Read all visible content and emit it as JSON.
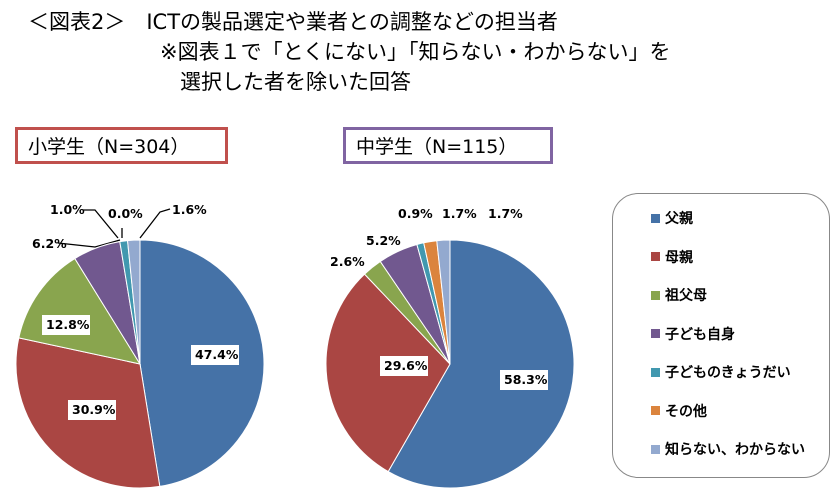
{
  "title": {
    "line1": "＜図表2＞　ICTの製品選定や業者との調整などの担当者",
    "line2": "※図表１で「とくにない」「知らない・わからない」を",
    "line3": "選択した者を除いた回答"
  },
  "colors": {
    "父親": "#4572a7",
    "母親": "#aa4643",
    "祖父母": "#89a54e",
    "子ども自身": "#71588f",
    "子どものきょうだい": "#4198af",
    "その他": "#db843d",
    "知らない、わからない": "#93a9cf"
  },
  "chart_data": [
    {
      "type": "pie",
      "title": "小学生（N=304）",
      "border_color": "#c0504d",
      "categories": [
        "父親",
        "母親",
        "祖父母",
        "子ども自身",
        "子どものきょうだい",
        "その他",
        "知らない、わからない"
      ],
      "values": [
        47.4,
        30.9,
        12.8,
        6.2,
        1.0,
        0.0,
        1.6
      ],
      "labels": [
        "47.4%",
        "30.9%",
        "12.8%",
        "6.2%",
        "1.0%",
        "0.0%",
        "1.6%"
      ]
    },
    {
      "type": "pie",
      "title": "中学生（N=115）",
      "border_color": "#8064a2",
      "categories": [
        "父親",
        "母親",
        "祖父母",
        "子ども自身",
        "子どものきょうだい",
        "その他",
        "知らない、わからない"
      ],
      "values": [
        58.3,
        29.6,
        2.6,
        5.2,
        0.9,
        1.7,
        1.7
      ],
      "labels": [
        "58.3%",
        "29.6%",
        "2.6%",
        "5.2%",
        "0.9%",
        "1.7%",
        "1.7%"
      ]
    }
  ],
  "legend": {
    "placement": "right",
    "items": [
      "父親",
      "母親",
      "祖父母",
      "子ども自身",
      "子どものきょうだい",
      "その他",
      "知らない、わからない"
    ]
  }
}
